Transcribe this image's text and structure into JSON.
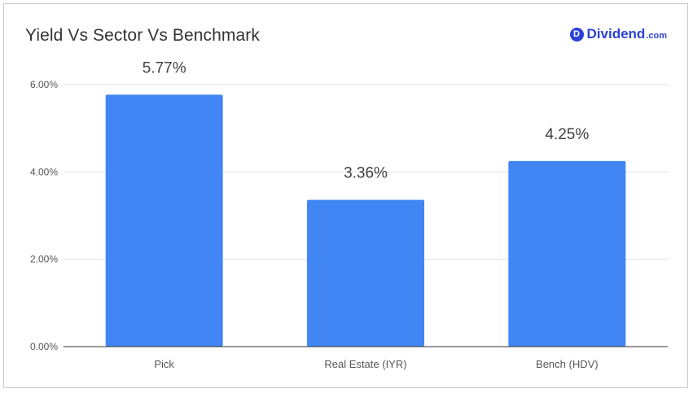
{
  "brand": {
    "badge_letter": "D",
    "name": "Dividend",
    "suffix": ".com",
    "color": "#2c42d6"
  },
  "chart_data": {
    "type": "bar",
    "title": "Yield Vs Sector Vs Benchmark",
    "categories": [
      "Pick",
      "Real Estate (IYR)",
      "Bench (HDV)"
    ],
    "values": [
      5.77,
      3.36,
      4.25
    ],
    "data_labels": [
      "5.77%",
      "3.36%",
      "4.25%"
    ],
    "yticks": [
      0,
      2,
      4,
      6
    ],
    "ytick_labels": [
      "0.00%",
      "2.00%",
      "4.00%",
      "6.00%"
    ],
    "ylim": [
      0,
      6
    ],
    "xlabel": "",
    "ylabel": "",
    "grid": true,
    "legend": "none",
    "bar_color": "#4285f4"
  }
}
